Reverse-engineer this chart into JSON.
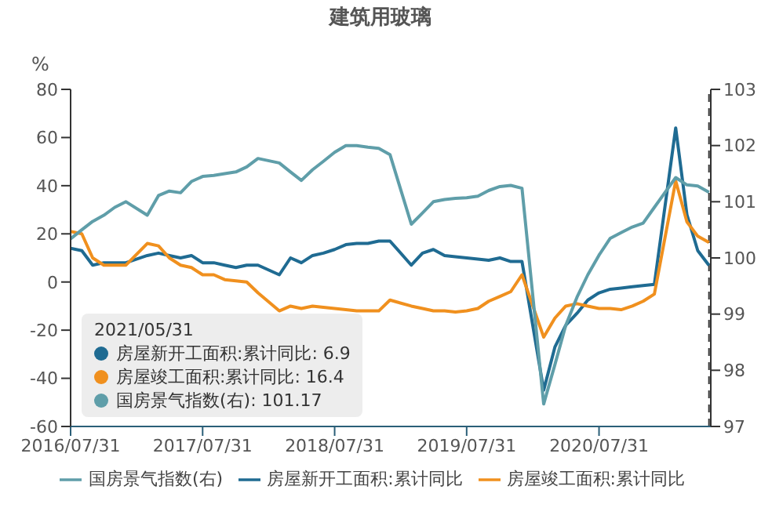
{
  "chart_data": {
    "type": "line",
    "title": "建筑用玻璃",
    "ylabel": "%",
    "x": [
      "2016-07-31",
      "2016-08-31",
      "2016-09-30",
      "2016-10-31",
      "2016-11-30",
      "2016-12-31",
      "2017-02-28",
      "2017-03-31",
      "2017-04-30",
      "2017-05-31",
      "2017-06-30",
      "2017-07-31",
      "2017-08-31",
      "2017-09-30",
      "2017-10-31",
      "2017-11-30",
      "2017-12-31",
      "2018-02-28",
      "2018-03-31",
      "2018-04-30",
      "2018-05-31",
      "2018-06-30",
      "2018-07-31",
      "2018-08-31",
      "2018-09-30",
      "2018-10-31",
      "2018-11-30",
      "2018-12-31",
      "2019-02-28",
      "2019-03-31",
      "2019-04-30",
      "2019-05-31",
      "2019-06-30",
      "2019-07-31",
      "2019-08-31",
      "2019-09-30",
      "2019-10-31",
      "2019-11-30",
      "2019-12-31",
      "2020-02-29",
      "2020-03-31",
      "2020-04-30",
      "2020-05-31",
      "2020-06-30",
      "2020-07-31",
      "2020-08-31",
      "2020-09-30",
      "2020-10-31",
      "2020-11-30",
      "2020-12-31",
      "2021-02-28",
      "2021-03-31",
      "2021-04-30",
      "2021-05-31"
    ],
    "series": [
      {
        "name": "房屋新开工面积:累计同比",
        "color": "#1f6b92",
        "values": [
          14,
          13,
          7,
          8,
          8,
          8,
          11,
          12,
          11,
          10,
          11,
          8,
          8,
          7,
          6,
          7,
          7,
          3,
          10,
          8,
          11,
          12,
          13.5,
          15.5,
          16,
          16,
          17,
          17,
          7,
          12,
          13.5,
          11,
          10.5,
          10,
          9.5,
          9,
          10,
          8.5,
          8.5,
          -44.9,
          -27,
          -18,
          -13,
          -7.5,
          -4.5,
          -3,
          -2.5,
          -2,
          -1.5,
          -1,
          64,
          28,
          13,
          6.9
        ]
      },
      {
        "name": "房屋竣工面积:累计同比",
        "color": "#f0901e",
        "values": [
          21,
          20,
          10,
          7,
          7,
          7,
          16,
          15,
          10,
          7,
          6,
          3,
          3,
          1,
          0.5,
          0,
          -4.5,
          -12,
          -10,
          -11,
          -10,
          -10.5,
          -11,
          -11.5,
          -12,
          -12,
          -12,
          -7.5,
          -10,
          -11,
          -12,
          -12,
          -12.5,
          -12,
          -11,
          -8,
          -6,
          -4,
          3,
          -22.9,
          -15,
          -10,
          -9,
          -10,
          -11,
          -11,
          -11.5,
          -10,
          -8,
          -5,
          42,
          25,
          19,
          16.4
        ]
      },
      {
        "name": "国房景气指数(右)",
        "color": "#5f9ea9",
        "axis": "y2",
        "values": [
          100.34,
          100.5,
          100.65,
          100.76,
          100.9,
          101.0,
          100.76,
          101.11,
          101.19,
          101.16,
          101.36,
          101.45,
          101.47,
          101.5,
          101.53,
          101.62,
          101.77,
          101.69,
          101.53,
          101.38,
          101.57,
          101.72,
          101.88,
          102.0,
          102.0,
          101.97,
          101.95,
          101.84,
          100.6,
          100.8,
          101.0,
          101.04,
          101.06,
          101.07,
          101.1,
          101.2,
          101.27,
          101.29,
          101.24,
          97.4,
          98.1,
          98.8,
          99.3,
          99.7,
          100.05,
          100.35,
          100.45,
          100.55,
          100.62,
          100.9,
          101.43,
          101.3,
          101.28,
          101.17
        ]
      }
    ],
    "xlim": [
      "2016-07-31",
      "2021-06-05"
    ],
    "xticks": [
      {
        "value": "2016-07-31",
        "label": "2016/07/31"
      },
      {
        "value": "2017-07-31",
        "label": "2017/07/31"
      },
      {
        "value": "2018-07-31",
        "label": "2018/07/31"
      },
      {
        "value": "2019-07-31",
        "label": "2019/07/31"
      },
      {
        "value": "2020-07-31",
        "label": "2020/07/31"
      }
    ],
    "ylim": [
      -60,
      80
    ],
    "yticks": [
      -60,
      -40,
      -20,
      0,
      20,
      40,
      60,
      80
    ],
    "y2lim": [
      97,
      103
    ],
    "y2ticks": [
      97,
      98,
      99,
      100,
      101,
      102,
      103
    ],
    "ref_lines": [
      {
        "axis": "x",
        "value": "2021-05-31",
        "color": "#333333",
        "line_style": "dashed"
      }
    ],
    "annotations": [
      "2021/05/31",
      "房屋新开工面积:累计同比: 6.9",
      "房屋竣工面积:累计同比: 16.4",
      "国房景气指数(右): 101.17"
    ],
    "legend": "bottom",
    "grid": false,
    "marker": "none",
    "line_style": "solid"
  }
}
